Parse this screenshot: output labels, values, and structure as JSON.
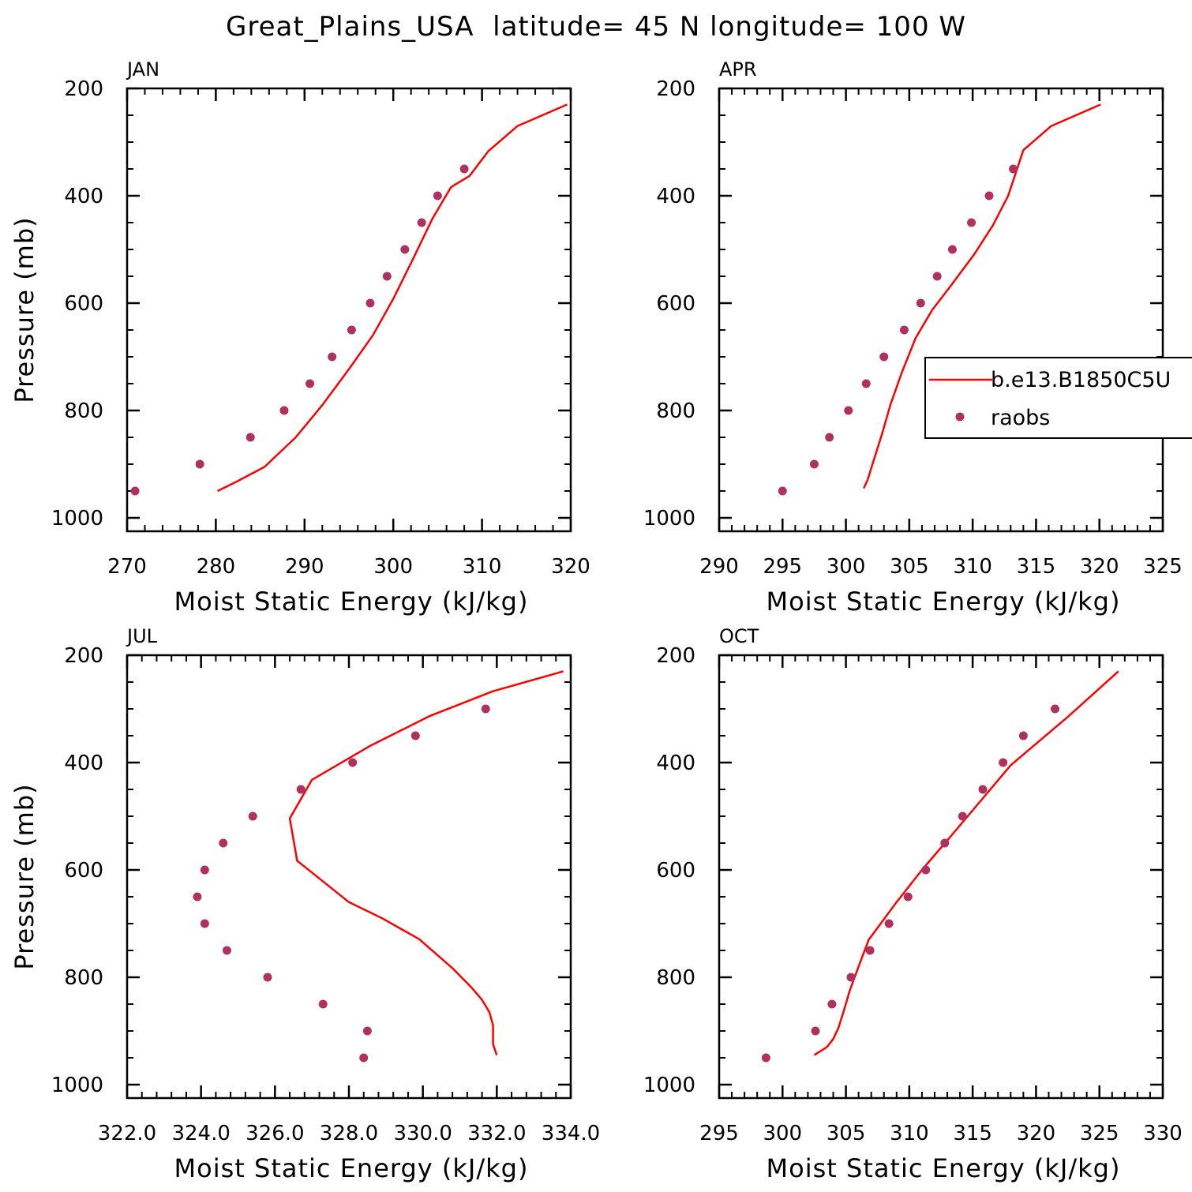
{
  "figure": {
    "title": "Great_Plains_USA  latitude= 45 N longitude= 100 W"
  },
  "legend": {
    "entries": [
      {
        "label": "b.e13.B1850C5U",
        "kind": "line",
        "color": "#ff0000"
      },
      {
        "label": "raobs",
        "kind": "marker",
        "color": "#b03060"
      }
    ]
  },
  "colors": {
    "model_line": "#ff0000",
    "raobs_marker": "#b03060",
    "axes": "#000000"
  },
  "chart_data": [
    {
      "type": "line",
      "panel": "JAN",
      "xlabel": "Moist Static Energy (kJ/kg)",
      "ylabel": "Pressure (mb)",
      "xlim": [
        270,
        320
      ],
      "ylim": [
        1025,
        200
      ],
      "y_reversed": true,
      "xticks": [
        270,
        280,
        290,
        300,
        310,
        320
      ],
      "xtick_labels": [
        "270",
        "280",
        "290",
        "300",
        "310",
        "320"
      ],
      "yticks": [
        200,
        400,
        600,
        800,
        1000
      ],
      "ytick_labels": [
        "200",
        "400",
        "600",
        "800",
        "1000"
      ],
      "series": [
        {
          "name": "b.e13.B1850C5U",
          "style": "line",
          "x": [
            280.2,
            282.3,
            285.5,
            289.0,
            292.0,
            295.0,
            297.7,
            300.0,
            302.3,
            304.4,
            306.5,
            308.6,
            310.7,
            314.0,
            319.6
          ],
          "y": [
            950,
            933,
            905,
            850,
            790,
            723,
            660,
            592,
            515,
            443,
            384,
            363,
            317,
            270,
            230
          ]
        },
        {
          "name": "raobs",
          "style": "marker",
          "x": [
            270.9,
            278.2,
            283.9,
            287.7,
            290.6,
            293.1,
            295.3,
            297.4,
            299.3,
            301.3,
            303.2,
            305.0,
            308.0
          ],
          "y": [
            950,
            900,
            850,
            800,
            750,
            700,
            650,
            600,
            550,
            500,
            450,
            400,
            350
          ]
        }
      ]
    },
    {
      "type": "line",
      "panel": "APR",
      "xlabel": "Moist Static Energy (kJ/kg)",
      "ylabel": "",
      "xlim": [
        290,
        325
      ],
      "ylim": [
        1025,
        200
      ],
      "y_reversed": true,
      "xticks": [
        290,
        295,
        300,
        305,
        310,
        315,
        320,
        325
      ],
      "xtick_labels": [
        "290",
        "295",
        "300",
        "305",
        "310",
        "315",
        "320",
        "325"
      ],
      "yticks": [
        200,
        400,
        600,
        800,
        1000
      ],
      "ytick_labels": [
        "200",
        "400",
        "600",
        "800",
        "1000"
      ],
      "series": [
        {
          "name": "b.e13.B1850C5U",
          "style": "line",
          "x": [
            301.4,
            301.7,
            302.3,
            302.9,
            303.5,
            304.4,
            305.5,
            306.8,
            308.2,
            310.1,
            311.6,
            312.8,
            314.0,
            316.2,
            320.1
          ],
          "y": [
            945,
            930,
            885,
            840,
            790,
            730,
            665,
            613,
            570,
            510,
            455,
            400,
            315,
            270,
            230
          ]
        },
        {
          "name": "raobs",
          "style": "marker",
          "x": [
            295.0,
            297.5,
            298.7,
            300.2,
            301.6,
            303.0,
            304.6,
            305.9,
            307.2,
            308.4,
            309.9,
            311.3,
            313.2
          ],
          "y": [
            950,
            900,
            850,
            800,
            750,
            700,
            650,
            600,
            550,
            500,
            450,
            400,
            350
          ]
        }
      ]
    },
    {
      "type": "line",
      "panel": "JUL",
      "xlabel": "Moist Static Energy (kJ/kg)",
      "ylabel": "Pressure (mb)",
      "xlim": [
        322.0,
        334.0
      ],
      "ylim": [
        1025,
        200
      ],
      "y_reversed": true,
      "xticks": [
        322,
        324,
        326,
        328,
        330,
        332,
        334
      ],
      "xtick_labels": [
        "322.0",
        "324.0",
        "326.0",
        "328.0",
        "330.0",
        "332.0",
        "334.0"
      ],
      "yticks": [
        200,
        400,
        600,
        800,
        1000
      ],
      "ytick_labels": [
        "200",
        "400",
        "600",
        "800",
        "1000"
      ],
      "series": [
        {
          "name": "b.e13.B1850C5U",
          "style": "line",
          "x": [
            332.0,
            331.9,
            331.9,
            331.8,
            331.6,
            331.3,
            330.8,
            329.9,
            328.9,
            328.0,
            326.6,
            326.4,
            327.0,
            328.6,
            330.2,
            331.9,
            333.8
          ],
          "y": [
            945,
            925,
            890,
            865,
            842,
            818,
            783,
            729,
            690,
            660,
            583,
            504,
            432,
            368,
            313,
            267,
            230
          ]
        },
        {
          "name": "raobs",
          "style": "marker",
          "x": [
            328.4,
            328.5,
            327.3,
            325.8,
            324.7,
            324.1,
            323.9,
            324.1,
            324.6,
            325.4,
            326.7,
            328.1,
            329.8,
            331.7
          ],
          "y": [
            950,
            900,
            850,
            800,
            750,
            700,
            650,
            600,
            550,
            500,
            450,
            400,
            350,
            300
          ]
        }
      ]
    },
    {
      "type": "line",
      "panel": "OCT",
      "xlabel": "Moist Static Energy (kJ/kg)",
      "ylabel": "",
      "xlim": [
        295,
        330
      ],
      "ylim": [
        1025,
        200
      ],
      "y_reversed": true,
      "xticks": [
        295,
        300,
        305,
        310,
        315,
        320,
        325,
        330
      ],
      "xtick_labels": [
        "295",
        "300",
        "305",
        "310",
        "315",
        "320",
        "325",
        "330"
      ],
      "yticks": [
        200,
        400,
        600,
        800,
        1000
      ],
      "ytick_labels": [
        "200",
        "400",
        "600",
        "800",
        "1000"
      ],
      "series": [
        {
          "name": "b.e13.B1850C5U",
          "style": "line",
          "x": [
            302.5,
            303.5,
            304.0,
            304.4,
            304.8,
            305.3,
            306.0,
            306.8,
            309.0,
            311.0,
            313.0,
            315.5,
            318.0,
            320.0,
            322.5,
            326.5
          ],
          "y": [
            945,
            930,
            915,
            895,
            865,
            825,
            780,
            730,
            660,
            600,
            545,
            475,
            405,
            365,
            315,
            230
          ]
        },
        {
          "name": "raobs",
          "style": "marker",
          "x": [
            298.7,
            302.6,
            303.9,
            305.4,
            306.9,
            308.4,
            309.9,
            311.3,
            312.8,
            314.2,
            315.8,
            317.4,
            319.0,
            321.5
          ],
          "y": [
            950,
            900,
            850,
            800,
            750,
            700,
            650,
            600,
            550,
            500,
            450,
            400,
            350,
            300
          ]
        }
      ]
    }
  ]
}
